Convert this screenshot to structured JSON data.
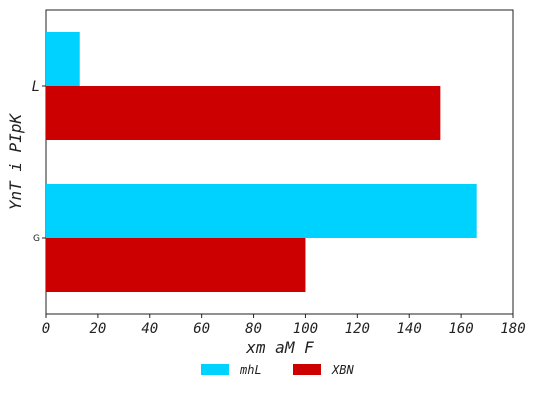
{
  "chart_data": {
    "type": "bar",
    "orientation": "horizontal",
    "categories": [
      "L",
      "G"
    ],
    "series": [
      {
        "name": "mhL",
        "values": [
          13,
          166
        ],
        "color": "#00d2ff"
      },
      {
        "name": "XBN",
        "values": [
          152,
          100
        ],
        "color": "#cc0000"
      }
    ],
    "xlabel": "xm aM F",
    "ylabel": "YnT i PIpK",
    "xlim": [
      0,
      180
    ],
    "xticks": [
      0,
      20,
      40,
      60,
      80,
      100,
      120,
      140,
      160,
      180
    ],
    "grid": false,
    "legend_position": "bottom-center"
  }
}
